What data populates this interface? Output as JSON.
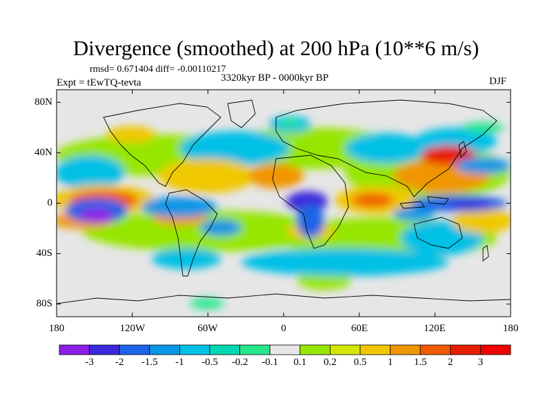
{
  "title": "Divergence (smoothed) at 200 hPa (10**6 m/s)",
  "stats": "rmsd= 0.671404 diff= -0.00110217",
  "period": "3320kyr BP - 0000kyr BP",
  "experiment": "Expt = tEwTQ-tevta",
  "season": "DJF",
  "y_axis_labels": [
    "80N",
    "40N",
    "0",
    "40S",
    "80S"
  ],
  "x_axis_labels": [
    "180",
    "120W",
    "60W",
    "0",
    "60E",
    "120E",
    "180"
  ],
  "colorbar": {
    "labels": [
      "-3",
      "-2",
      "-1.5",
      "-1",
      "-0.5",
      "-0.2",
      "-0.1",
      "0.1",
      "0.2",
      "0.5",
      "1",
      "1.5",
      "2",
      "3"
    ],
    "colors": [
      "#8c1ee6",
      "#3c28dc",
      "#1e64e6",
      "#0a96e6",
      "#00c0e6",
      "#00d7b4",
      "#28e68c",
      "#e6e6e6",
      "#96e600",
      "#d2e600",
      "#f0c800",
      "#f09600",
      "#f05a00",
      "#e61e00",
      "#f00000"
    ]
  },
  "map": {
    "projection": "cylindrical-equidistant",
    "lon_range": [
      -180,
      180
    ],
    "lat_range": [
      -90,
      90
    ],
    "field": "200 hPa divergence difference",
    "background_color": "#e6e6e6"
  }
}
